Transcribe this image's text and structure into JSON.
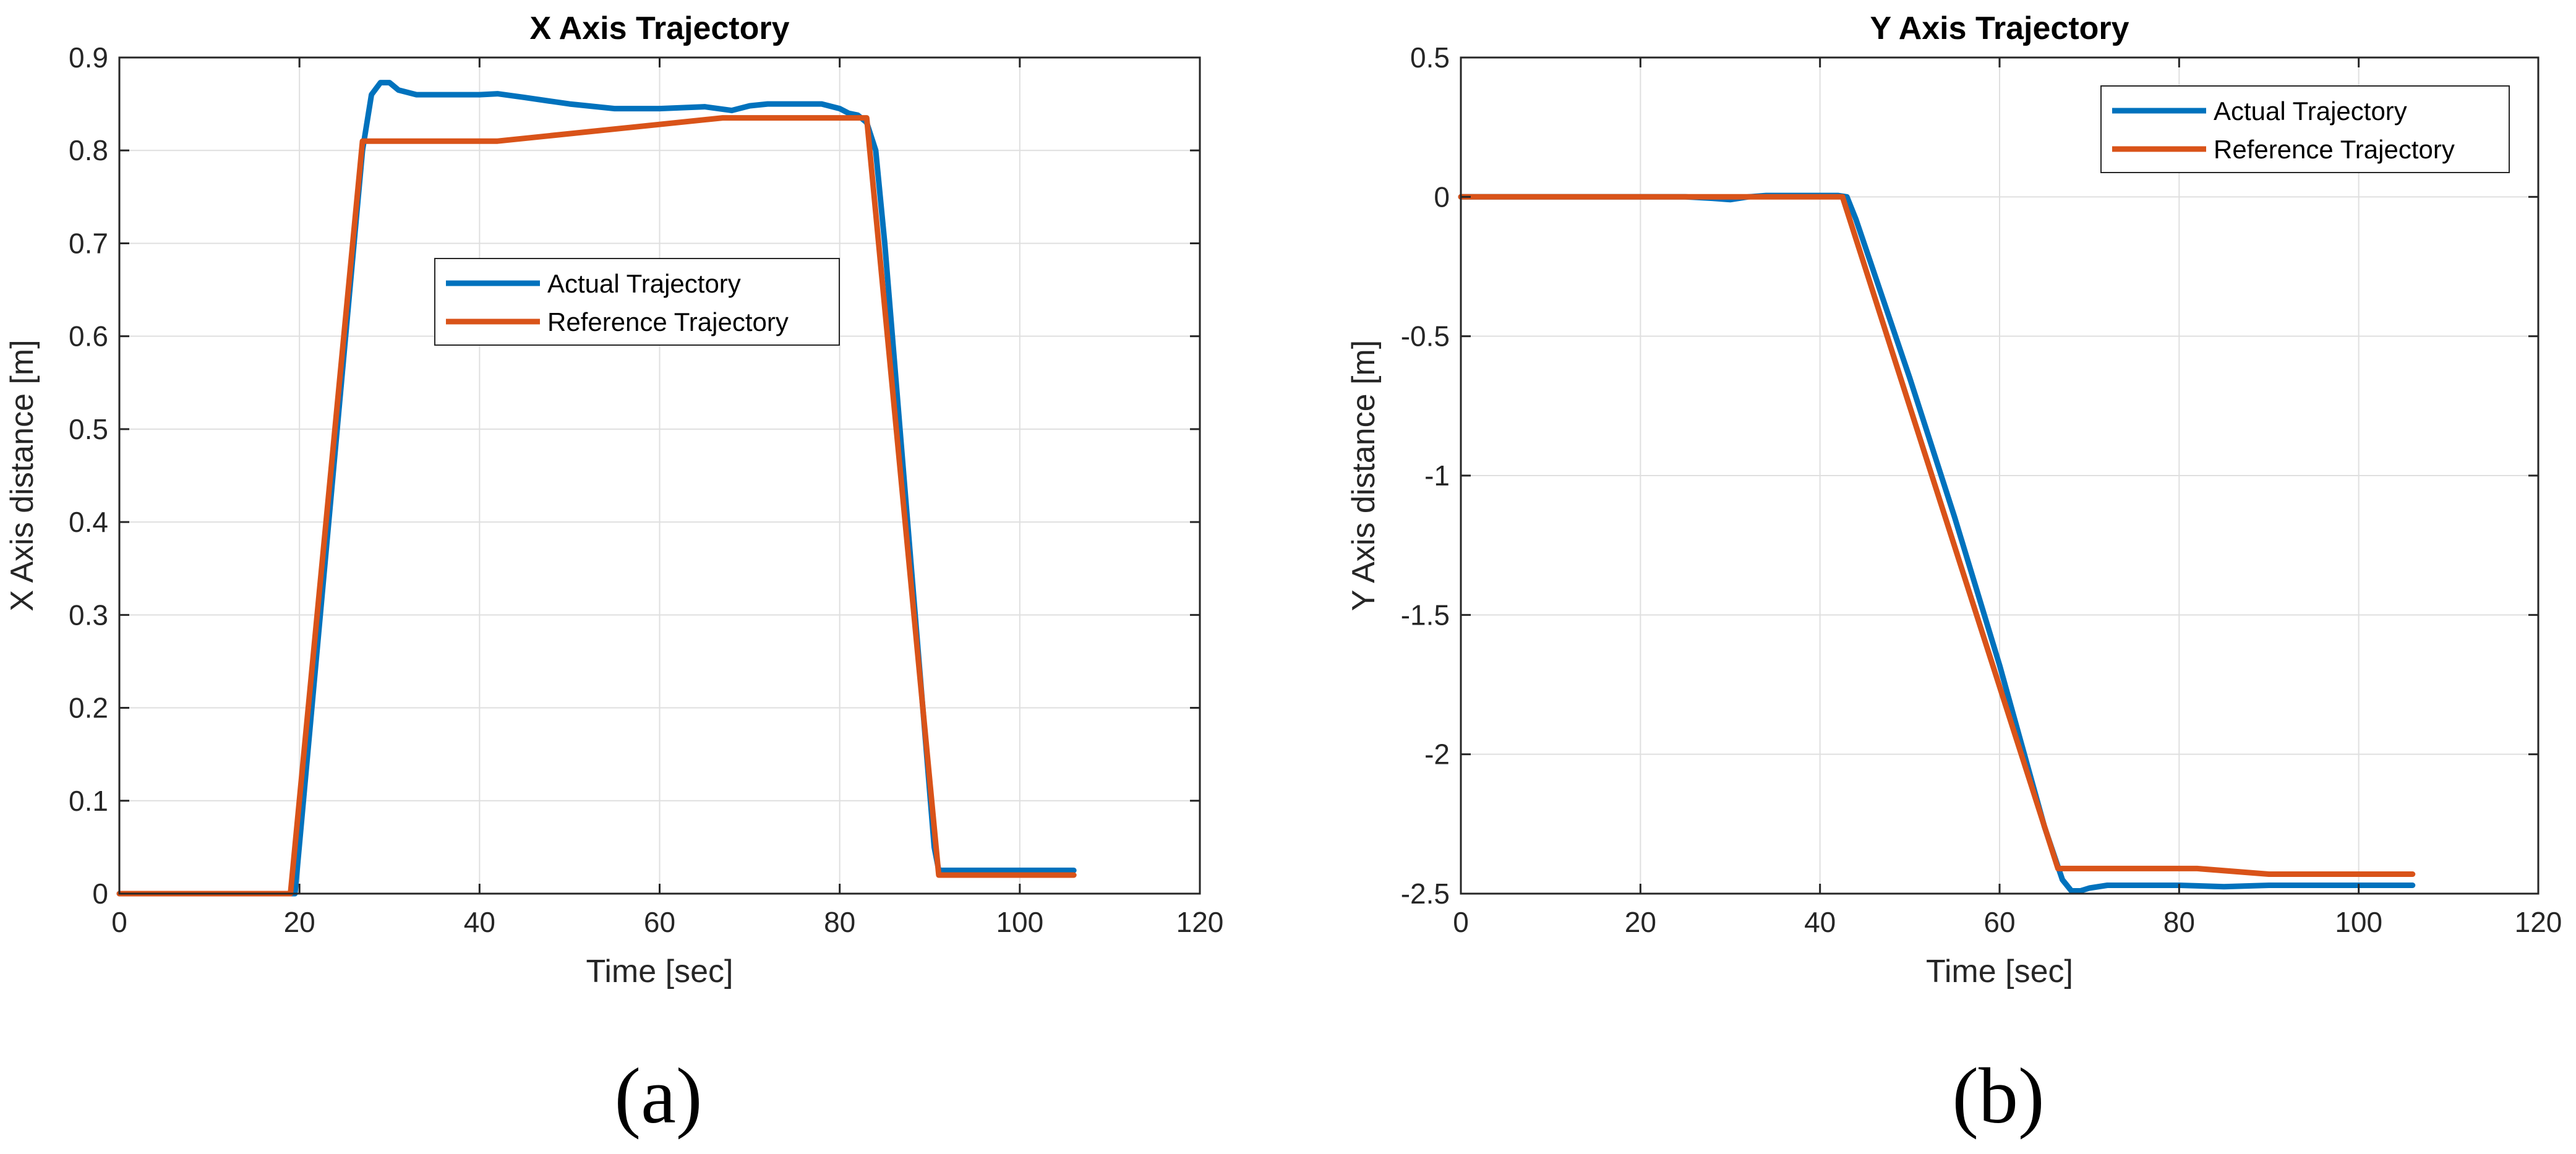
{
  "chart_data": [
    {
      "type": "line",
      "title": "X Axis Trajectory",
      "xlabel": "Time [sec]",
      "ylabel": "X Axis distance [m]",
      "xlim": [
        0,
        120
      ],
      "ylim": [
        0,
        0.9
      ],
      "xticks": [
        0,
        20,
        40,
        60,
        80,
        100,
        120
      ],
      "yticks": [
        0,
        0.1,
        0.2,
        0.3,
        0.4,
        0.5,
        0.6,
        0.7,
        0.8,
        0.9
      ],
      "xtick_labels": [
        "0",
        "20",
        "40",
        "60",
        "80",
        "100",
        "120"
      ],
      "ytick_labels": [
        "0",
        "0.1",
        "0.2",
        "0.3",
        "0.4",
        "0.5",
        "0.6",
        "0.7",
        "0.8",
        "0.9"
      ],
      "grid": true,
      "legend_position": "center",
      "caption": "(a)",
      "series": [
        {
          "name": "Actual Trajectory",
          "color": "#0072BD",
          "x": [
            0,
            19,
            19.5,
            27,
            28,
            29,
            30,
            31,
            33,
            36,
            40,
            42,
            45,
            50,
            55,
            60,
            65,
            68,
            70,
            72,
            75,
            78,
            80,
            81,
            82,
            83,
            84,
            85,
            90.5,
            91,
            100,
            106
          ],
          "y": [
            0,
            0,
            0,
            0.8,
            0.86,
            0.873,
            0.873,
            0.865,
            0.86,
            0.86,
            0.86,
            0.861,
            0.857,
            0.85,
            0.845,
            0.845,
            0.847,
            0.843,
            0.848,
            0.85,
            0.85,
            0.85,
            0.845,
            0.84,
            0.838,
            0.83,
            0.8,
            0.7,
            0.05,
            0.025,
            0.025,
            0.025
          ]
        },
        {
          "name": "Reference Trajectory",
          "color": "#D95319",
          "x": [
            0,
            19,
            27,
            30,
            42,
            67,
            82,
            83,
            91,
            100,
            106
          ],
          "y": [
            0,
            0,
            0.81,
            0.81,
            0.81,
            0.835,
            0.835,
            0.835,
            0.02,
            0.02,
            0.02
          ]
        }
      ]
    },
    {
      "type": "line",
      "title": "Y Axis Trajectory",
      "xlabel": "Time [sec]",
      "ylabel": "Y Axis distance [m]",
      "xlim": [
        0,
        120
      ],
      "ylim": [
        -2.5,
        0.5
      ],
      "xticks": [
        0,
        20,
        40,
        60,
        80,
        100,
        120
      ],
      "yticks": [
        -2.5,
        -2,
        -1.5,
        -1,
        -0.5,
        0,
        0.5
      ],
      "xtick_labels": [
        "0",
        "20",
        "40",
        "60",
        "80",
        "100",
        "120"
      ],
      "ytick_labels": [
        "-2.5",
        "-2",
        "-1.5",
        "-1",
        "-0.5",
        "0",
        "0.5"
      ],
      "grid": true,
      "legend_position": "top-right",
      "caption": "(b)",
      "series": [
        {
          "name": "Actual Trajectory",
          "color": "#0072BD",
          "x": [
            0,
            25,
            28,
            30,
            32,
            34,
            40,
            42,
            43,
            44,
            50,
            55,
            60,
            65,
            67,
            68,
            69,
            70,
            72,
            75,
            80,
            85,
            90,
            100,
            106
          ],
          "y": [
            0,
            0,
            -0.005,
            -0.01,
            0,
            0.005,
            0.005,
            0.005,
            0,
            -0.08,
            -0.65,
            -1.15,
            -1.68,
            -2.26,
            -2.45,
            -2.49,
            -2.49,
            -2.48,
            -2.47,
            -2.47,
            -2.47,
            -2.475,
            -2.47,
            -2.47,
            -2.47
          ]
        },
        {
          "name": "Reference Trajectory",
          "color": "#D95319",
          "x": [
            0,
            42.5,
            66.5,
            70,
            82,
            90,
            100,
            106
          ],
          "y": [
            0,
            0,
            -2.41,
            -2.41,
            -2.41,
            -2.43,
            -2.43,
            -2.43
          ]
        }
      ]
    }
  ]
}
